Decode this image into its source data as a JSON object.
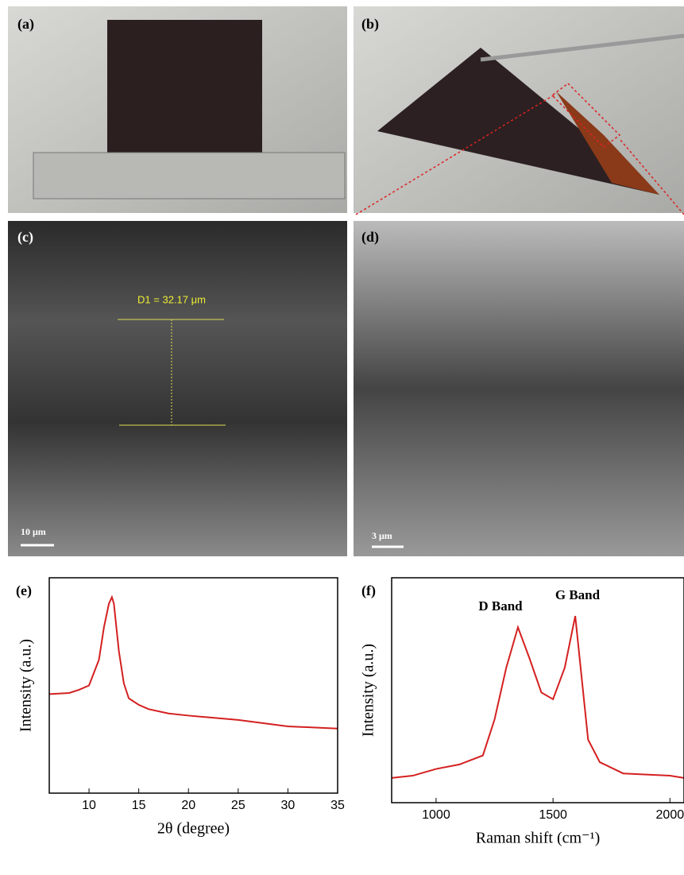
{
  "photos": [
    {
      "label": "(a)"
    },
    {
      "label": "(b)"
    },
    {
      "label": "(c)",
      "annotation": "D1 = 32.17 μm",
      "scale_bar": "10 μm"
    },
    {
      "label": "(d)",
      "scale_bar": "3 μm"
    }
  ],
  "chart_data": [
    {
      "type": "line",
      "panel_label": "(e)",
      "x_label": "2θ (degree)",
      "y_label": "Intensity (a.u.)",
      "x": [
        6,
        8,
        9,
        10,
        11,
        11.5,
        12,
        12.3,
        12.5,
        13,
        13.5,
        14,
        15,
        16,
        18,
        20,
        25,
        30,
        35
      ],
      "series": [
        {
          "color": "#d42020",
          "values": [
            46,
            46.5,
            48,
            50,
            62,
            77,
            88,
            91,
            88,
            66,
            51,
            44,
            41,
            39,
            37,
            36,
            34,
            31,
            30
          ]
        }
      ],
      "xlim": [
        6,
        35
      ],
      "ylim": [
        0,
        100
      ],
      "xticks": [
        10,
        15,
        20,
        25,
        30,
        35
      ]
    },
    {
      "type": "line",
      "panel_label": "(f)",
      "x_label": "Raman shift (cm⁻¹)",
      "y_label": "Intensity (a.u.)",
      "annotations": [
        "D Band",
        "G Band"
      ],
      "x": [
        810,
        900,
        1000,
        1100,
        1200,
        1250,
        1300,
        1350,
        1400,
        1450,
        1500,
        1550,
        1595,
        1650,
        1700,
        1800,
        2000,
        2060
      ],
      "series": [
        {
          "color": "#d42020",
          "values": [
            11,
            12,
            15,
            17,
            21,
            37,
            60,
            78,
            64,
            49,
            46,
            60,
            83,
            28,
            18,
            13,
            12,
            11
          ]
        }
      ],
      "xlim": [
        810,
        2060
      ],
      "ylim": [
        0,
        100
      ],
      "xticks": [
        1000,
        1500,
        2000
      ]
    }
  ]
}
